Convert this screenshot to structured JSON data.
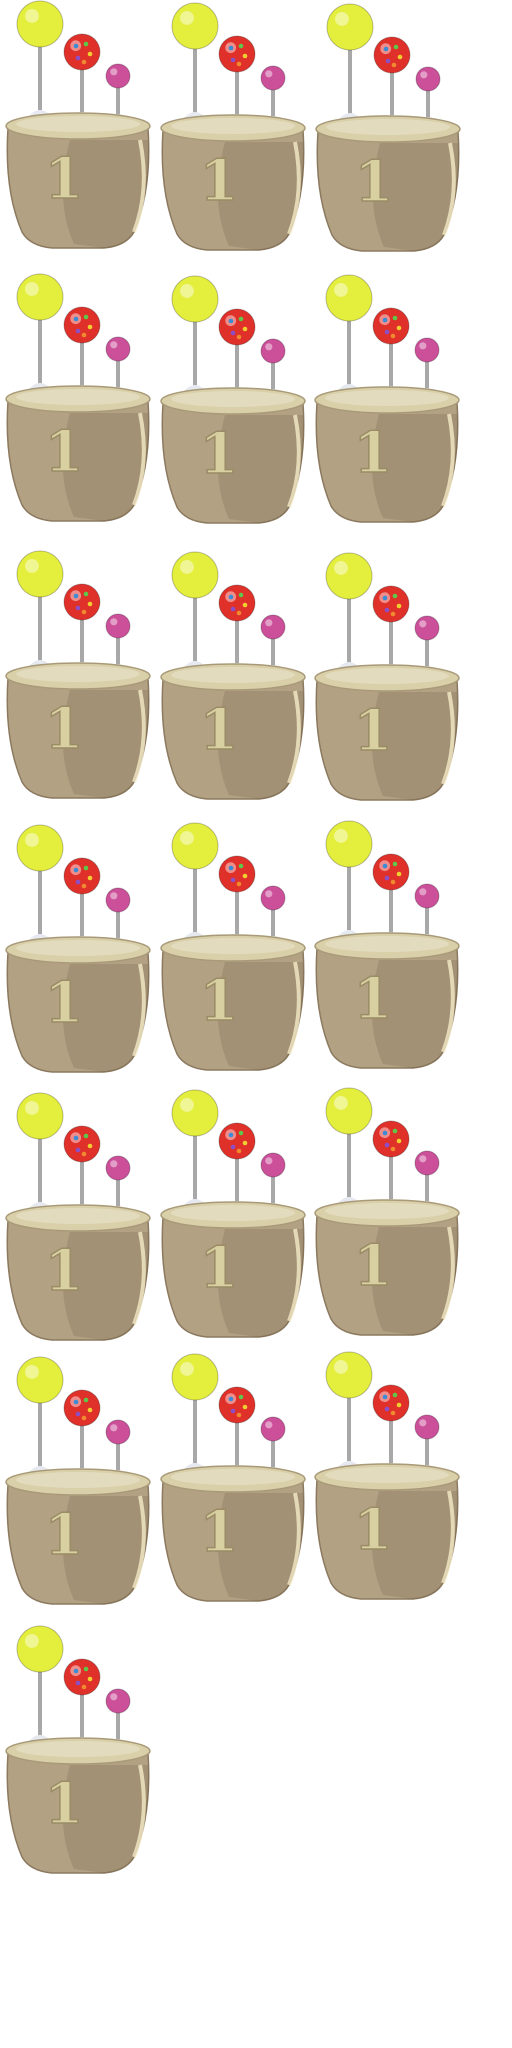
{
  "sprite_sheet": {
    "frame_count": 19,
    "columns": 3,
    "frames": [
      {
        "count": "1"
      },
      {
        "count": "1"
      },
      {
        "count": "1"
      },
      {
        "count": "1"
      },
      {
        "count": "1"
      },
      {
        "count": "1"
      },
      {
        "count": "1"
      },
      {
        "count": "1"
      },
      {
        "count": "1"
      },
      {
        "count": "1"
      },
      {
        "count": "1"
      },
      {
        "count": "1"
      },
      {
        "count": "1"
      },
      {
        "count": "1"
      },
      {
        "count": "1"
      },
      {
        "count": "1"
      },
      {
        "count": "1"
      },
      {
        "count": "1"
      },
      {
        "count": "1"
      }
    ]
  },
  "colors": {
    "background": "#ffffff",
    "pot_body": "#b3a184",
    "pot_shadow": "#8c7a60",
    "pot_rim": "#d9cfa8",
    "pot_rim_edge": "#a89a78",
    "lollipop_yellow": "#e4ee3c",
    "lollipop_red": "#e0302a",
    "lollipop_pink": "#cc4f9a",
    "stick": "#a8a8a8",
    "sugar": "#e6e9f0",
    "number_fill": "#d8d0a0",
    "number_stroke": "#9a8c66"
  },
  "icons": {
    "pot": "candy-pot-icon",
    "yellow_pop": "yellow-lollipop-icon",
    "red_pop": "red-lollipop-icon",
    "pink_pop": "pink-lollipop-icon"
  }
}
